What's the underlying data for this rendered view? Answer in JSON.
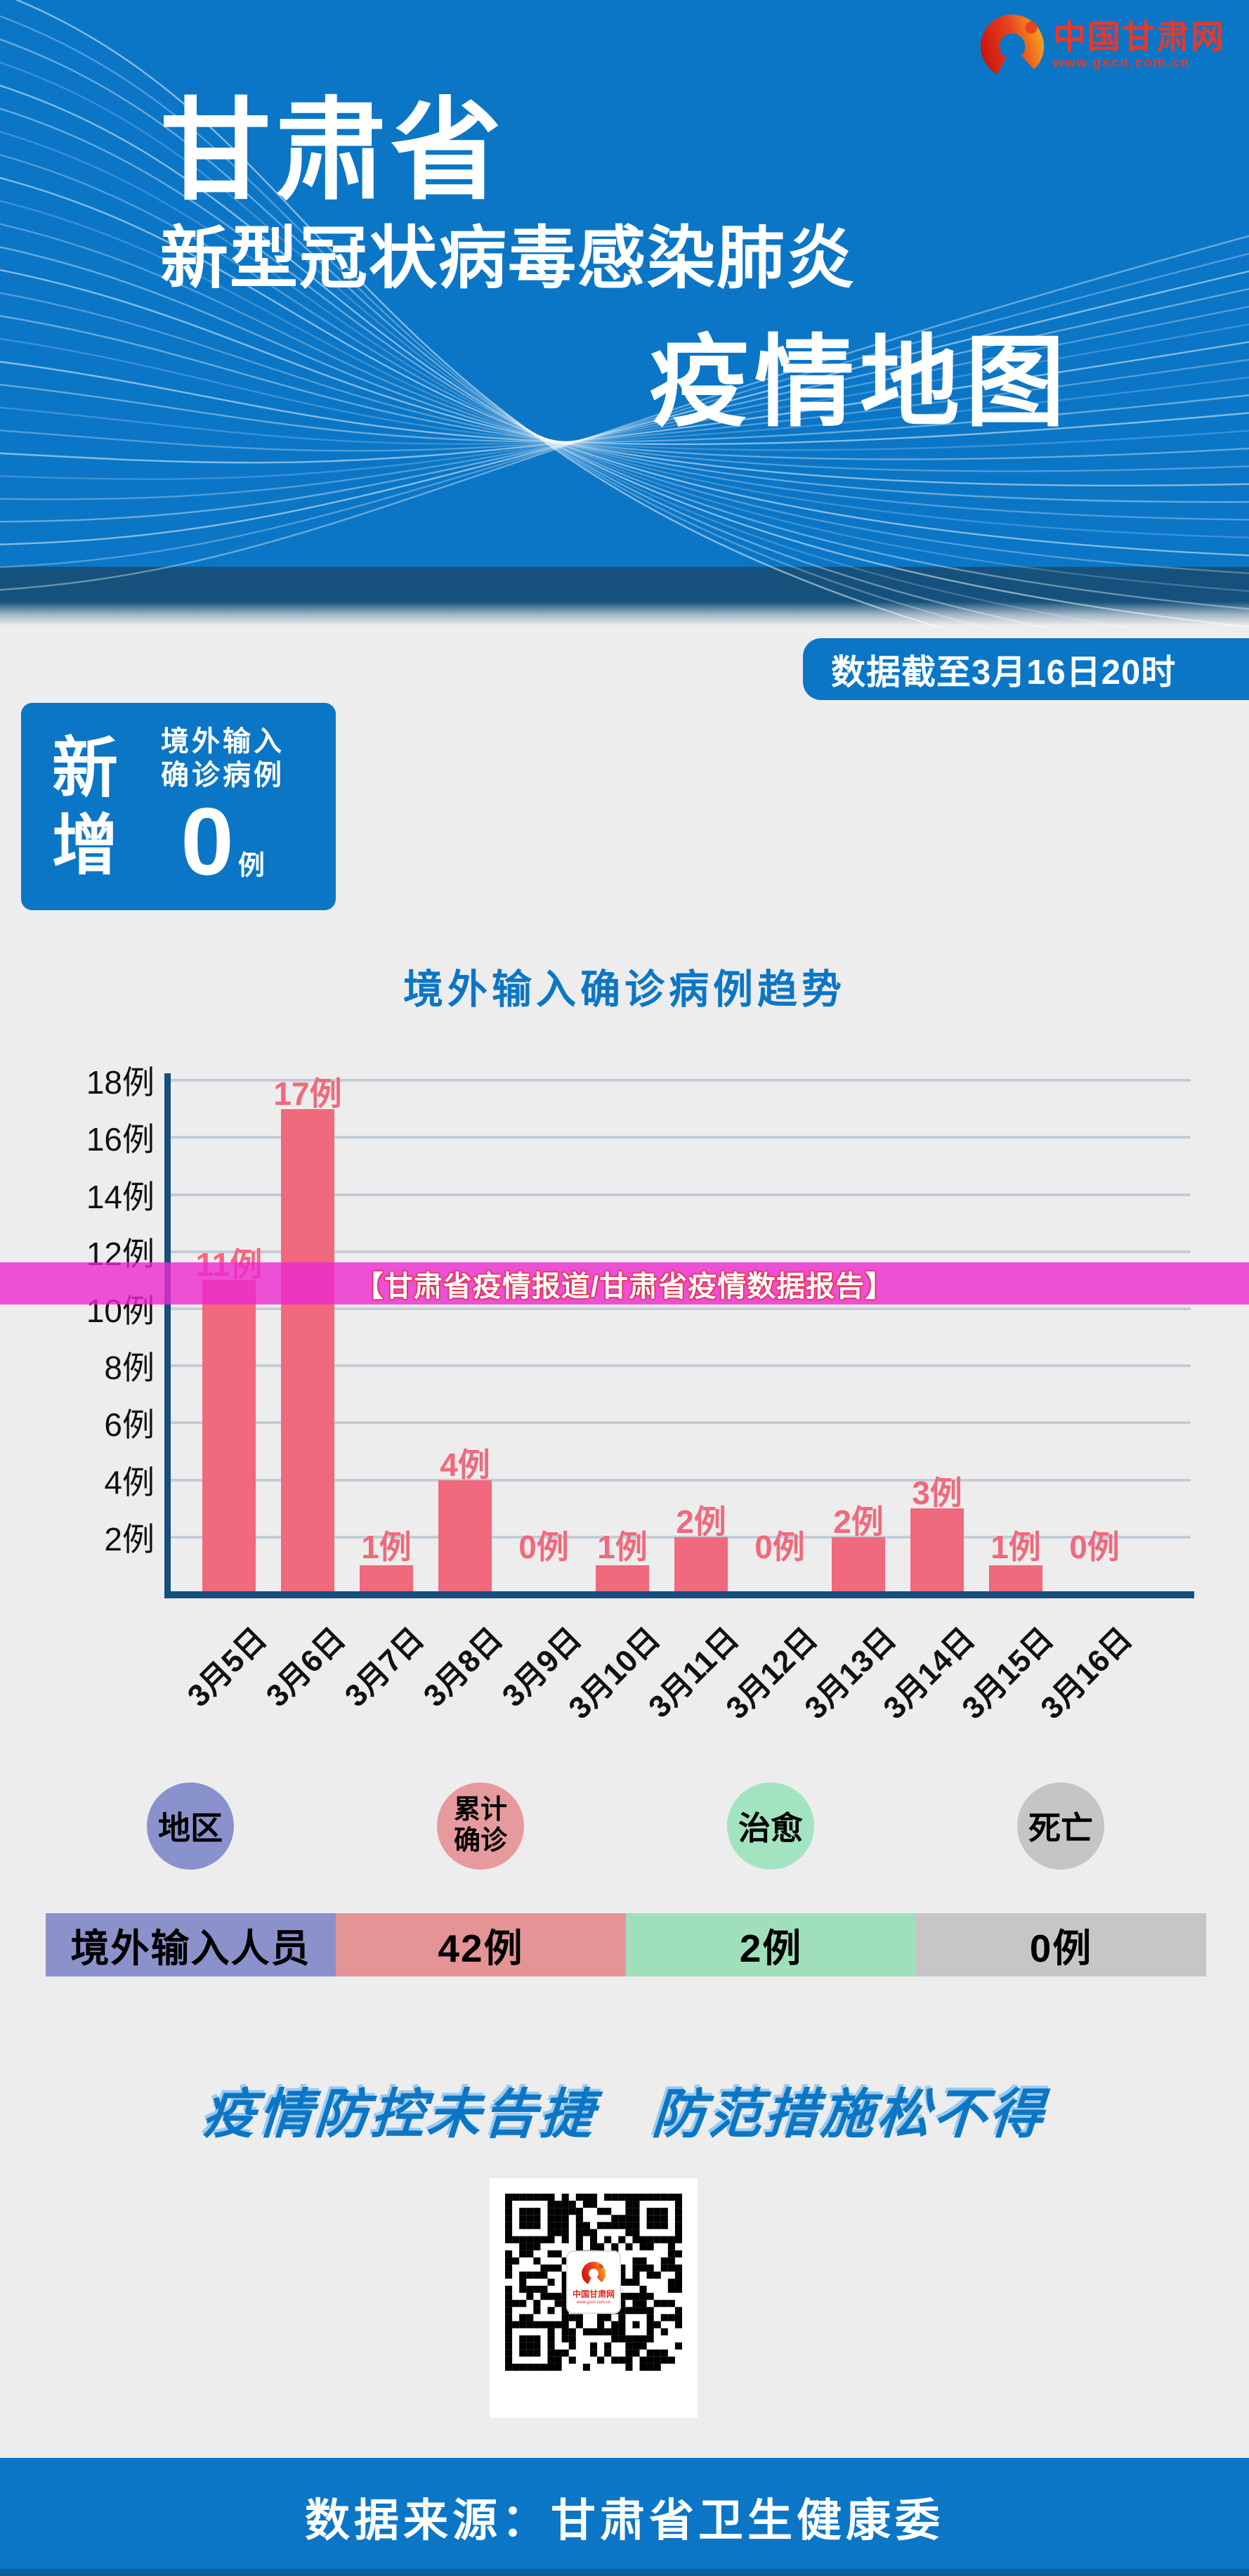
{
  "header": {
    "title_line1": "甘肃省",
    "title_line2": "新型冠状病毒感染肺炎",
    "title_line3": "疫情地图",
    "logo": {
      "name": "中国甘肃网",
      "url_text": "www.gscn.com.cn"
    }
  },
  "cutoff_badge": {
    "text": "数据截至3月16日20时"
  },
  "new_cases_card": {
    "label_chars": [
      "新",
      "增"
    ],
    "sub_lines": [
      "境外输入",
      "确诊病例"
    ],
    "value": "0",
    "unit": "例"
  },
  "chart_data": {
    "type": "bar",
    "title": "境外输入确诊病例趋势",
    "categories": [
      "3月5日",
      "3月6日",
      "3月7日",
      "3月8日",
      "3月9日",
      "3月10日",
      "3月11日",
      "3月12日",
      "3月13日",
      "3月14日",
      "3月15日",
      "3月16日"
    ],
    "values": [
      11,
      17,
      1,
      4,
      0,
      1,
      2,
      0,
      2,
      3,
      1,
      0
    ],
    "bar_labels": [
      "11例",
      "17例",
      "1例",
      "4例",
      "0例",
      "1例",
      "2例",
      "0例",
      "2例",
      "3例",
      "1例",
      "0例"
    ],
    "ytick_labels": [
      "2例",
      "4例",
      "6例",
      "8例",
      "10例",
      "12例",
      "14例",
      "16例",
      "18例"
    ],
    "ylim": [
      0,
      18
    ],
    "grid": true,
    "legend_position": "none",
    "xlabel": "",
    "ylabel": "",
    "bar_color": "#F0697C",
    "label_color": "#F0697C",
    "axis_color": "#144F7D",
    "grid_color": "#C3CDD7"
  },
  "overlay_banner": {
    "text": "【甘肃省疫情报道/甘肃省疫情数据报告】",
    "color": "#EE28CE"
  },
  "summary": {
    "legend": [
      {
        "label": "地区",
        "color": "#8A92CD",
        "lines": 1
      },
      {
        "label": "累计\n确诊",
        "color": "#E79A9D",
        "lines": 2
      },
      {
        "label": "治愈",
        "color": "#A3E4C0",
        "lines": 1
      },
      {
        "label": "死亡",
        "color": "#C5C5C7",
        "lines": 1
      }
    ],
    "row": [
      {
        "text": "境外输入人员",
        "color": "#8A91CB"
      },
      {
        "text": "42例",
        "color": "#E59496"
      },
      {
        "text": "2例",
        "color": "#9FE0BA"
      },
      {
        "text": "0例",
        "color": "#C6C6C8"
      }
    ]
  },
  "slogan": {
    "text": "疫情防控未告捷　防范措施松不得"
  },
  "qr": {
    "center_name": "中国甘肃网",
    "center_url": "www.gscn.com.cn"
  },
  "footer": {
    "text": "数据来源：甘肃省卫生健康委"
  },
  "colors": {
    "brand_blue": "#0B76C6",
    "navy_band": "#15517C",
    "background_gray": "#EDEDEE",
    "bar_pink": "#F0697C",
    "banner_magenta": "#EE28CE",
    "logo_red": "#E23A2E"
  }
}
